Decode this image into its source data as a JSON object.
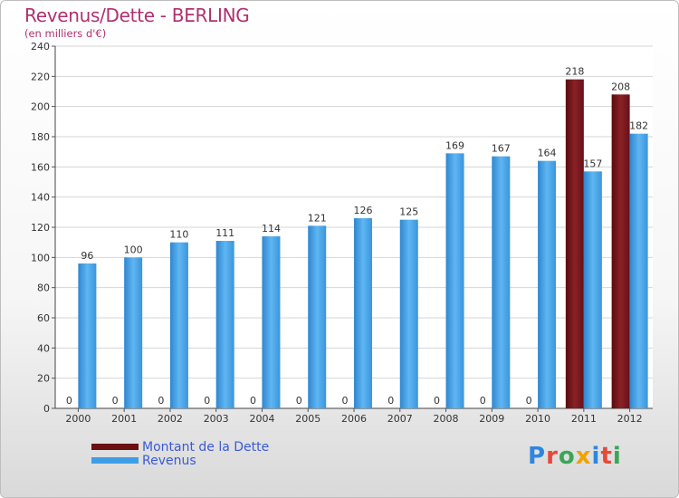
{
  "header": {
    "title": "Revenus/Dette - BERLING",
    "subtitle": "(en milliers d'€)"
  },
  "chart_data": {
    "type": "bar",
    "categories": [
      "2000",
      "2001",
      "2002",
      "2003",
      "2004",
      "2005",
      "2006",
      "2007",
      "2008",
      "2009",
      "2010",
      "2011",
      "2012"
    ],
    "series": [
      {
        "name": "Montant de la Dette",
        "color": "#6b0f12",
        "values": [
          0,
          0,
          0,
          0,
          0,
          0,
          0,
          0,
          0,
          0,
          0,
          218,
          208
        ]
      },
      {
        "name": "Revenus",
        "color": "#3e9ee5",
        "values": [
          96,
          100,
          110,
          111,
          114,
          121,
          126,
          125,
          169,
          167,
          164,
          157,
          182
        ]
      }
    ],
    "ylim": [
      0,
      240
    ],
    "yticks": [
      0,
      20,
      40,
      60,
      80,
      100,
      120,
      140,
      160,
      180,
      200,
      220,
      240
    ],
    "grid": true,
    "legend_position": "bottom-left"
  },
  "legend": {
    "items": [
      {
        "label": "Montant de la Dette",
        "color": "#6b0f12"
      },
      {
        "label": "Revenus",
        "color": "#3e9ee5"
      }
    ]
  },
  "logo": {
    "letters": [
      "P",
      "r",
      "o",
      "x",
      "i",
      "t",
      "i"
    ],
    "colors": [
      "#2e86de",
      "#e8483a",
      "#3aa655",
      "#f0a202",
      "#2e86de",
      "#e8483a",
      "#3aa655"
    ]
  }
}
